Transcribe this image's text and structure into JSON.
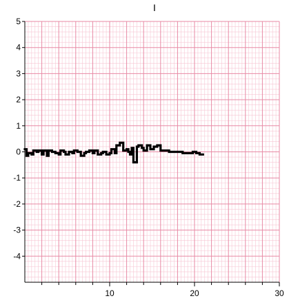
{
  "chart_data": {
    "type": "line",
    "title": "I",
    "xlabel": "",
    "ylabel": "",
    "xlim": [
      0,
      30
    ],
    "ylim": [
      -5,
      5
    ],
    "x_ticks": [
      10,
      20,
      30
    ],
    "y_ticks": [
      5,
      4,
      3,
      2,
      1,
      0,
      -1,
      -2,
      -3,
      -4
    ],
    "grid": true,
    "colors": {
      "minor_grid": "#f7c6d3",
      "major_grid": "#e88aa5",
      "series": "#000000",
      "axis": "#000000"
    },
    "series": [
      {
        "x": [
          0,
          0.2,
          0.4,
          0.8,
          1.0,
          1.4,
          1.6,
          2.0,
          2.2,
          2.6,
          2.8,
          3.2,
          3.6,
          4.0,
          4.2,
          4.6,
          4.8,
          5.2,
          5.6,
          5.8,
          6.2,
          6.6,
          7.0,
          7.2,
          7.6,
          8.0,
          8.2,
          8.6,
          9.0,
          9.2,
          9.6,
          10.0,
          10.2,
          10.6,
          10.8,
          11.2,
          11.6,
          12.0,
          12.2,
          12.4,
          12.6,
          12.8,
          13.2,
          13.4,
          13.8,
          14.0,
          14.4,
          14.8,
          15.2,
          15.6,
          16.0,
          16.4,
          17.0,
          18.0,
          18.6,
          19.2,
          19.8,
          20.2,
          20.6,
          21.0
        ],
        "y": [
          0.1,
          -0.15,
          -0.05,
          -0.1,
          0.05,
          0.0,
          0.05,
          -0.1,
          0.05,
          -0.15,
          0.05,
          0.0,
          -0.05,
          -0.1,
          0.05,
          0.0,
          -0.1,
          0.0,
          -0.05,
          0.05,
          0.0,
          -0.15,
          -0.05,
          0.0,
          0.05,
          -0.05,
          0.05,
          -0.1,
          -0.05,
          0.0,
          -0.1,
          -0.05,
          0.1,
          -0.05,
          0.25,
          0.35,
          0.05,
          0.1,
          0.0,
          -0.1,
          0.15,
          -0.4,
          0.2,
          0.25,
          0.15,
          0.05,
          0.25,
          0.1,
          0.2,
          0.25,
          0.05,
          0.05,
          0.0,
          0.0,
          -0.05,
          -0.05,
          0.0,
          -0.05,
          -0.1,
          -0.1
        ]
      }
    ]
  }
}
